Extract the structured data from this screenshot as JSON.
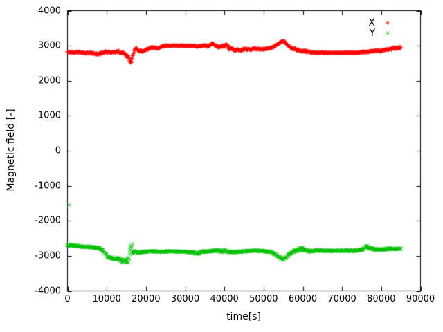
{
  "chart_data": {
    "type": "scatter",
    "title": "",
    "xlabel": "time[s]",
    "ylabel": "Magnetic field [-]",
    "xlim": [
      0,
      90000
    ],
    "ylim": [
      -4000,
      4000
    ],
    "xticks": [
      0,
      10000,
      20000,
      30000,
      40000,
      50000,
      60000,
      70000,
      80000,
      90000
    ],
    "yticks": [
      -4000,
      -3000,
      -2000,
      -1000,
      0,
      1000,
      2000,
      3000,
      4000
    ],
    "grid": false,
    "legend_position": "top-right",
    "frame_color": "#000000",
    "series": [
      {
        "name": "X",
        "color": "#ff0000",
        "marker": "plus",
        "t_range": [
          0,
          85000
        ],
        "keypoints": [
          [
            0,
            2820
          ],
          [
            3000,
            2810
          ],
          [
            6000,
            2790
          ],
          [
            8000,
            2770
          ],
          [
            9500,
            2820
          ],
          [
            11000,
            2810
          ],
          [
            13000,
            2830
          ],
          [
            14500,
            2760
          ],
          [
            15500,
            2700
          ],
          [
            16000,
            2520
          ],
          [
            16500,
            2620
          ],
          [
            17000,
            2870
          ],
          [
            17500,
            2930
          ],
          [
            18000,
            2860
          ],
          [
            19000,
            2840
          ],
          [
            20000,
            2890
          ],
          [
            21000,
            2930
          ],
          [
            22000,
            2950
          ],
          [
            23000,
            2920
          ],
          [
            24000,
            2980
          ],
          [
            25000,
            3000
          ],
          [
            27000,
            3005
          ],
          [
            30000,
            3000
          ],
          [
            32000,
            3000
          ],
          [
            33000,
            2975
          ],
          [
            34000,
            2990
          ],
          [
            35000,
            3010
          ],
          [
            36000,
            2990
          ],
          [
            36500,
            3040
          ],
          [
            37000,
            3060
          ],
          [
            37500,
            3020
          ],
          [
            38000,
            3000
          ],
          [
            38500,
            2960
          ],
          [
            39000,
            2980
          ],
          [
            40000,
            3000
          ],
          [
            40500,
            3030
          ],
          [
            41000,
            2960
          ],
          [
            42000,
            2900
          ],
          [
            43000,
            2880
          ],
          [
            44000,
            2870
          ],
          [
            45000,
            2900
          ],
          [
            46000,
            2890
          ],
          [
            47000,
            2910
          ],
          [
            48000,
            2920
          ],
          [
            49000,
            2900
          ],
          [
            50000,
            2900
          ],
          [
            51000,
            2920
          ],
          [
            52000,
            2940
          ],
          [
            53000,
            3000
          ],
          [
            54000,
            3080
          ],
          [
            54500,
            3120
          ],
          [
            55000,
            3140
          ],
          [
            55500,
            3110
          ],
          [
            56000,
            3030
          ],
          [
            56500,
            2980
          ],
          [
            57000,
            2940
          ],
          [
            57500,
            2900
          ],
          [
            58000,
            2920
          ],
          [
            58500,
            2870
          ],
          [
            59000,
            2880
          ],
          [
            60000,
            2850
          ],
          [
            61000,
            2830
          ],
          [
            62000,
            2810
          ],
          [
            63000,
            2800
          ],
          [
            65000,
            2800
          ],
          [
            67000,
            2795
          ],
          [
            70000,
            2800
          ],
          [
            72000,
            2800
          ],
          [
            74000,
            2800
          ],
          [
            75000,
            2810
          ],
          [
            76000,
            2820
          ],
          [
            77000,
            2830
          ],
          [
            78000,
            2850
          ],
          [
            79000,
            2860
          ],
          [
            80000,
            2870
          ],
          [
            81000,
            2880
          ],
          [
            82000,
            2900
          ],
          [
            83000,
            2920
          ],
          [
            84000,
            2930
          ],
          [
            85000,
            2940
          ]
        ],
        "noise_amplitude": [
          [
            0,
            35
          ],
          [
            8000,
            45
          ],
          [
            12000,
            35
          ],
          [
            14500,
            70
          ],
          [
            16000,
            90
          ],
          [
            17000,
            50
          ],
          [
            20000,
            40
          ],
          [
            25000,
            15
          ],
          [
            32000,
            15
          ],
          [
            34000,
            30
          ],
          [
            36000,
            40
          ],
          [
            40000,
            50
          ],
          [
            41000,
            60
          ],
          [
            44000,
            50
          ],
          [
            48000,
            35
          ],
          [
            52000,
            30
          ],
          [
            55000,
            35
          ],
          [
            58000,
            60
          ],
          [
            60000,
            50
          ],
          [
            62000,
            30
          ],
          [
            65000,
            20
          ],
          [
            70000,
            18
          ],
          [
            74000,
            18
          ],
          [
            76000,
            30
          ],
          [
            80000,
            45
          ],
          [
            82000,
            40
          ],
          [
            84000,
            60
          ],
          [
            85000,
            50
          ]
        ],
        "outliers": []
      },
      {
        "name": "Y",
        "color": "#00c000",
        "marker": "cross",
        "t_range": [
          0,
          85000
        ],
        "keypoints": [
          [
            0,
            -2700
          ],
          [
            2000,
            -2710
          ],
          [
            4000,
            -2730
          ],
          [
            6000,
            -2750
          ],
          [
            8000,
            -2780
          ],
          [
            9000,
            -2850
          ],
          [
            9500,
            -2920
          ],
          [
            10000,
            -2980
          ],
          [
            10500,
            -3030
          ],
          [
            11000,
            -3060
          ],
          [
            12000,
            -3080
          ],
          [
            13000,
            -3070
          ],
          [
            13500,
            -3120
          ],
          [
            14000,
            -3140
          ],
          [
            14500,
            -3120
          ],
          [
            15000,
            -3130
          ],
          [
            15500,
            -3100
          ],
          [
            16000,
            -2870
          ],
          [
            16300,
            -2850
          ],
          [
            16700,
            -2900
          ],
          [
            17000,
            -2880
          ],
          [
            18000,
            -2900
          ],
          [
            19000,
            -2890
          ],
          [
            20000,
            -2880
          ],
          [
            22000,
            -2870
          ],
          [
            24000,
            -2880
          ],
          [
            26000,
            -2870
          ],
          [
            28000,
            -2880
          ],
          [
            30000,
            -2880
          ],
          [
            31000,
            -2900
          ],
          [
            32000,
            -2890
          ],
          [
            33000,
            -2950
          ],
          [
            33500,
            -2930
          ],
          [
            34000,
            -2890
          ],
          [
            35000,
            -2880
          ],
          [
            36000,
            -2870
          ],
          [
            37000,
            -2860
          ],
          [
            38000,
            -2850
          ],
          [
            39000,
            -2870
          ],
          [
            40000,
            -2860
          ],
          [
            41000,
            -2880
          ],
          [
            42000,
            -2900
          ],
          [
            43000,
            -2890
          ],
          [
            44000,
            -2880
          ],
          [
            45000,
            -2870
          ],
          [
            46000,
            -2860
          ],
          [
            47000,
            -2850
          ],
          [
            48000,
            -2850
          ],
          [
            49000,
            -2860
          ],
          [
            50000,
            -2860
          ],
          [
            51000,
            -2880
          ],
          [
            52000,
            -2900
          ],
          [
            53000,
            -2960
          ],
          [
            54000,
            -3040
          ],
          [
            54500,
            -3080
          ],
          [
            55000,
            -3100
          ],
          [
            55500,
            -3070
          ],
          [
            56000,
            -3010
          ],
          [
            56500,
            -2960
          ],
          [
            57000,
            -2920
          ],
          [
            57500,
            -2880
          ],
          [
            58000,
            -2850
          ],
          [
            59000,
            -2830
          ],
          [
            60000,
            -2820
          ],
          [
            61000,
            -2850
          ],
          [
            62000,
            -2860
          ],
          [
            63000,
            -2850
          ],
          [
            65000,
            -2850
          ],
          [
            67000,
            -2855
          ],
          [
            70000,
            -2850
          ],
          [
            72000,
            -2855
          ],
          [
            74000,
            -2850
          ],
          [
            75000,
            -2820
          ],
          [
            76000,
            -2760
          ],
          [
            76500,
            -2740
          ],
          [
            77000,
            -2780
          ],
          [
            78000,
            -2810
          ],
          [
            79000,
            -2820
          ],
          [
            80000,
            -2820
          ],
          [
            81000,
            -2810
          ],
          [
            82000,
            -2800
          ],
          [
            83000,
            -2810
          ],
          [
            84000,
            -2800
          ],
          [
            85000,
            -2800
          ]
        ],
        "noise_amplitude": [
          [
            0,
            35
          ],
          [
            6000,
            35
          ],
          [
            9000,
            40
          ],
          [
            12000,
            50
          ],
          [
            14000,
            90
          ],
          [
            15000,
            120
          ],
          [
            15800,
            200
          ],
          [
            16100,
            320
          ],
          [
            16500,
            320
          ],
          [
            16900,
            120
          ],
          [
            17500,
            55
          ],
          [
            18000,
            40
          ],
          [
            25000,
            25
          ],
          [
            30000,
            30
          ],
          [
            33000,
            50
          ],
          [
            36000,
            35
          ],
          [
            40000,
            60
          ],
          [
            42000,
            40
          ],
          [
            45000,
            30
          ],
          [
            50000,
            35
          ],
          [
            53000,
            40
          ],
          [
            55000,
            45
          ],
          [
            57000,
            40
          ],
          [
            58000,
            70
          ],
          [
            59000,
            90
          ],
          [
            60000,
            80
          ],
          [
            61000,
            50
          ],
          [
            63000,
            35
          ],
          [
            67000,
            30
          ],
          [
            72000,
            30
          ],
          [
            75000,
            50
          ],
          [
            76000,
            90
          ],
          [
            77000,
            60
          ],
          [
            79000,
            40
          ],
          [
            81000,
            40
          ],
          [
            83000,
            45
          ],
          [
            85000,
            40
          ]
        ],
        "outliers": [
          [
            400,
            -1550
          ]
        ]
      }
    ]
  }
}
